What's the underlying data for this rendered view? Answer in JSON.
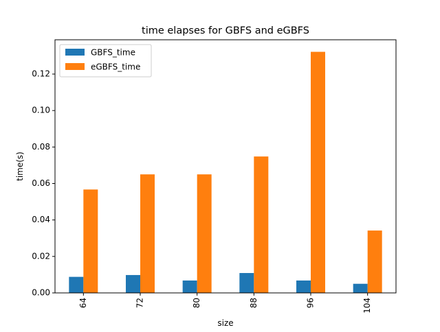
{
  "chart_data": {
    "type": "bar",
    "title": "time elapses for GBFS and eGBFS",
    "xlabel": "size",
    "ylabel": "time(s)",
    "categories": [
      "64",
      "72",
      "80",
      "88",
      "96",
      "104"
    ],
    "series": [
      {
        "name": "GBFS_time",
        "color": "#1f77b4",
        "values": [
          0.0088,
          0.0098,
          0.0068,
          0.0109,
          0.0068,
          0.005
        ]
      },
      {
        "name": "eGBFS_time",
        "color": "#ff7f0e",
        "values": [
          0.0567,
          0.065,
          0.065,
          0.0748,
          0.1322,
          0.0342
        ]
      }
    ],
    "ylim": [
      0,
      0.1388
    ],
    "yticks": [
      0.0,
      0.02,
      0.04,
      0.06,
      0.08,
      0.1,
      0.12
    ],
    "ytick_labels": [
      "0.00",
      "0.02",
      "0.04",
      "0.06",
      "0.08",
      "0.10",
      "0.12"
    ],
    "x_tick_rotation": "vertical",
    "legend_position": "top-left",
    "grid": false
  }
}
